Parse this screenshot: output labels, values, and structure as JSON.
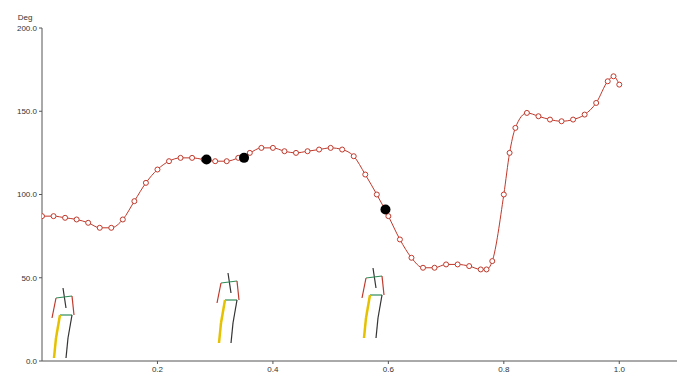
{
  "chart_data": {
    "type": "line",
    "y_label": "Deg",
    "grid": false,
    "xlim": [
      0,
      1.1
    ],
    "xticks": [
      0.2,
      0.4,
      0.6,
      0.8,
      {
        "value": 1,
        "label": "1.0"
      }
    ],
    "ylim": [
      0,
      200
    ],
    "yticks": [
      {
        "value": 0,
        "label": "0.0"
      },
      {
        "value": 50,
        "label": "50.0"
      },
      {
        "value": 100,
        "label": "100.0"
      },
      {
        "value": 150,
        "label": "150.0"
      },
      {
        "value": 200,
        "label": "200.0"
      }
    ],
    "series": [
      {
        "type": "line",
        "color": "#c0392b",
        "marker": "open_circle",
        "x": [
          0,
          0.02,
          0.04,
          0.06,
          0.08,
          0.1,
          0.12,
          0.14,
          0.16,
          0.18,
          0.2,
          0.22,
          0.24,
          0.26,
          0.28,
          0.3,
          0.32,
          0.34,
          0.36,
          0.38,
          0.4,
          0.42,
          0.44,
          0.46,
          0.48,
          0.5,
          0.52,
          0.54,
          0.56,
          0.58,
          0.6,
          0.62,
          0.64,
          0.66,
          0.68,
          0.7,
          0.72,
          0.74,
          0.76,
          0.77,
          0.78,
          0.8,
          0.81,
          0.82,
          0.84,
          0.86,
          0.88,
          0.9,
          0.92,
          0.94,
          0.96,
          0.98,
          0.99,
          1.0
        ],
        "values": [
          87,
          87,
          86,
          85,
          83,
          80,
          80,
          85,
          96,
          107,
          115,
          120,
          122,
          122,
          121,
          120,
          120,
          122,
          125,
          128,
          128,
          126,
          125,
          126,
          127,
          128,
          127,
          123,
          112,
          100,
          87,
          73,
          62,
          56,
          56,
          58,
          58,
          57,
          55,
          55,
          60,
          100,
          125,
          140,
          149,
          147,
          145,
          144,
          145,
          148,
          155,
          168,
          171,
          166
        ]
      },
      {
        "type": "scatter",
        "color": "#000000",
        "marker": "filled_circle",
        "x": [
          0.285,
          0.35,
          0.595
        ],
        "values": [
          121,
          122,
          91
        ]
      }
    ]
  }
}
